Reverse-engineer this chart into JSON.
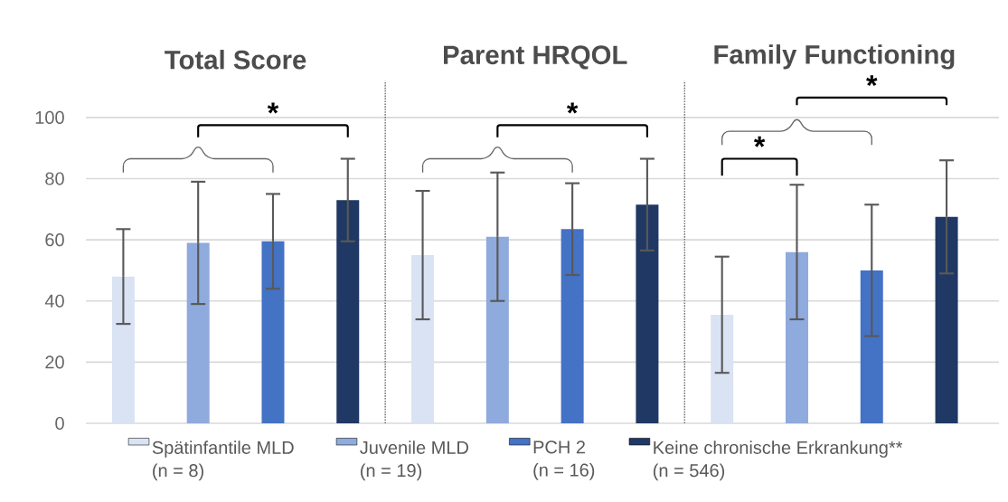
{
  "chart_data": {
    "type": "bar",
    "categories": [
      "Total Score",
      "Parent HRQOL",
      "Family Functioning"
    ],
    "series": [
      {
        "name": "Spätinfantile MLD (n = 8)",
        "color": "#dae3f3",
        "values": [
          48,
          55,
          35.5
        ],
        "errors": [
          15.5,
          21,
          19
        ]
      },
      {
        "name": "Juvenile MLD (n = 19)",
        "color": "#8faadc",
        "values": [
          59,
          61,
          56
        ],
        "errors": [
          20,
          21,
          22
        ]
      },
      {
        "name": "PCH 2 (n = 16)",
        "color": "#4472c4",
        "values": [
          59.5,
          63.5,
          50
        ],
        "errors": [
          15.5,
          15,
          21.5
        ]
      },
      {
        "name": "Keine chronische Erkrankung** (n = 546)",
        "color": "#203864",
        "values": [
          73,
          71.5,
          67.5
        ],
        "errors": [
          13.5,
          15,
          18.5
        ]
      }
    ],
    "ylim": [
      0,
      112
    ],
    "yticks": [
      0,
      20,
      40,
      60,
      80,
      100
    ],
    "grid": "y",
    "legend": "bottom",
    "annotations": [
      "*",
      "*",
      "*",
      "*"
    ]
  }
}
